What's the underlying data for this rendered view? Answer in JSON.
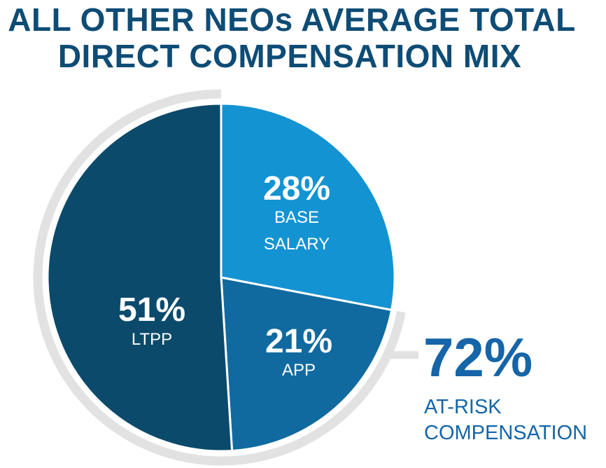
{
  "title_lines": [
    "ALL OTHER NEOs AVERAGE TOTAL",
    "DIRECT COMPENSATION MIX"
  ],
  "colors": {
    "title": "#0e4c75",
    "base_salary": "#1393d2",
    "app": "#106aa0",
    "ltpp": "#0b4a6b",
    "ring": "#e2e2e2",
    "at_risk_text": "#1565a8"
  },
  "chart_data": {
    "type": "pie",
    "title": "ALL OTHER NEOs AVERAGE TOTAL DIRECT COMPENSATION MIX",
    "slices": [
      {
        "key": "base_salary",
        "percent_label": "28%",
        "label_lines": [
          "BASE",
          "SALARY"
        ],
        "value": 28
      },
      {
        "key": "app",
        "percent_label": "21%",
        "label_lines": [
          "APP"
        ],
        "value": 21
      },
      {
        "key": "ltpp",
        "percent_label": "51%",
        "label_lines": [
          "LTPP"
        ],
        "value": 51
      }
    ],
    "at_risk": {
      "percent_label": "72%",
      "label_lines": [
        "AT-RISK",
        "COMPENSATION"
      ],
      "value": 72
    }
  }
}
